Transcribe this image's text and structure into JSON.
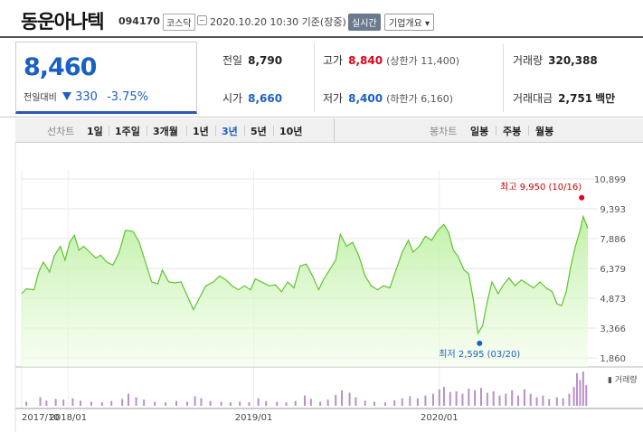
{
  "header": {
    "name": "동운아나텍",
    "code": "094170",
    "market": "코스닥",
    "timestamp": "2020.10.20 10:30 기준(장중)",
    "realtime_label": "실시간",
    "company_label": "기업개요 ▾"
  },
  "price": {
    "current": "8,460",
    "change_label": "전일대비",
    "change_amount": "330",
    "change_pct": "-3.75%",
    "color_down": "#1a5fc4",
    "color_up": "#e0001a"
  },
  "stats": {
    "prev_close": {
      "label": "전일",
      "value": "8,790"
    },
    "high": {
      "label": "고가",
      "value": "8,840",
      "sub": "(상한가 11,400)"
    },
    "volume": {
      "label": "거래량",
      "value": "320,388"
    },
    "open": {
      "label": "시가",
      "value": "8,660"
    },
    "low": {
      "label": "저가",
      "value": "8,400",
      "sub": "(하한가 6,160)"
    },
    "amount": {
      "label": "거래대금",
      "value": "2,751",
      "unit": "백만"
    }
  },
  "periods": {
    "line_label": "선차트",
    "items": [
      "1일",
      "1주일",
      "3개월",
      "1년",
      "3년",
      "5년",
      "10년"
    ],
    "active": "3년",
    "candle_label": "봉차트",
    "candle_items": [
      "일봉",
      "주봉",
      "월봉"
    ]
  },
  "chart_data": {
    "type": "area",
    "y_ticks": [
      "10,899",
      "9,393",
      "7,886",
      "6,379",
      "4,873",
      "3,366",
      "1,860"
    ],
    "ylim": [
      1860,
      10899
    ],
    "x_ticks": [
      {
        "label": "2017/10",
        "t": 0
      },
      {
        "label": "2018/01",
        "t": 3
      },
      {
        "label": "2019/01",
        "t": 15
      },
      {
        "label": "2020/01",
        "t": 27
      }
    ],
    "t_span": 36.6,
    "high_annotation": "최고 9,950 (10/16)",
    "low_annotation": "최저 2,595 (03/20)",
    "high_point": {
      "t": 36.2,
      "y": 9950
    },
    "low_point": {
      "t": 29.6,
      "y": 2595
    },
    "volume_legend": "▮ 거래량",
    "series": [
      {
        "t": 0.0,
        "y": 5100
      },
      {
        "t": 0.3,
        "y": 5350
      },
      {
        "t": 0.8,
        "y": 5300
      },
      {
        "t": 1.1,
        "y": 6200
      },
      {
        "t": 1.4,
        "y": 6700
      },
      {
        "t": 1.8,
        "y": 6200
      },
      {
        "t": 2.1,
        "y": 7000
      },
      {
        "t": 2.5,
        "y": 7500
      },
      {
        "t": 2.8,
        "y": 6800
      },
      {
        "t": 3.1,
        "y": 7700
      },
      {
        "t": 3.4,
        "y": 8050
      },
      {
        "t": 3.7,
        "y": 7300
      },
      {
        "t": 4.0,
        "y": 7500
      },
      {
        "t": 4.4,
        "y": 7200
      },
      {
        "t": 4.8,
        "y": 6900
      },
      {
        "t": 5.1,
        "y": 7050
      },
      {
        "t": 5.5,
        "y": 6700
      },
      {
        "t": 5.9,
        "y": 6550
      },
      {
        "t": 6.3,
        "y": 7200
      },
      {
        "t": 6.7,
        "y": 8300
      },
      {
        "t": 7.2,
        "y": 8250
      },
      {
        "t": 7.6,
        "y": 7700
      },
      {
        "t": 8.0,
        "y": 6700
      },
      {
        "t": 8.4,
        "y": 5700
      },
      {
        "t": 8.8,
        "y": 5600
      },
      {
        "t": 9.1,
        "y": 6300
      },
      {
        "t": 9.5,
        "y": 5700
      },
      {
        "t": 9.9,
        "y": 5650
      },
      {
        "t": 10.3,
        "y": 5700
      },
      {
        "t": 10.7,
        "y": 5000
      },
      {
        "t": 11.1,
        "y": 4300
      },
      {
        "t": 11.5,
        "y": 4900
      },
      {
        "t": 11.9,
        "y": 5500
      },
      {
        "t": 12.4,
        "y": 5700
      },
      {
        "t": 12.8,
        "y": 6000
      },
      {
        "t": 13.2,
        "y": 5800
      },
      {
        "t": 13.6,
        "y": 5500
      },
      {
        "t": 14.0,
        "y": 5300
      },
      {
        "t": 14.4,
        "y": 5500
      },
      {
        "t": 14.8,
        "y": 5300
      },
      {
        "t": 15.1,
        "y": 5850
      },
      {
        "t": 15.5,
        "y": 5700
      },
      {
        "t": 16.0,
        "y": 5500
      },
      {
        "t": 16.4,
        "y": 5550
      },
      {
        "t": 16.8,
        "y": 5200
      },
      {
        "t": 17.2,
        "y": 5700
      },
      {
        "t": 17.6,
        "y": 5400
      },
      {
        "t": 18.0,
        "y": 6500
      },
      {
        "t": 18.4,
        "y": 6600
      },
      {
        "t": 18.8,
        "y": 6000
      },
      {
        "t": 19.2,
        "y": 5300
      },
      {
        "t": 19.5,
        "y": 5800
      },
      {
        "t": 19.9,
        "y": 6300
      },
      {
        "t": 20.3,
        "y": 6800
      },
      {
        "t": 20.6,
        "y": 8100
      },
      {
        "t": 21.0,
        "y": 7500
      },
      {
        "t": 21.4,
        "y": 7700
      },
      {
        "t": 21.8,
        "y": 7000
      },
      {
        "t": 22.2,
        "y": 6000
      },
      {
        "t": 22.6,
        "y": 5500
      },
      {
        "t": 23.0,
        "y": 5300
      },
      {
        "t": 23.4,
        "y": 5500
      },
      {
        "t": 23.8,
        "y": 5400
      },
      {
        "t": 24.2,
        "y": 6300
      },
      {
        "t": 24.6,
        "y": 7200
      },
      {
        "t": 25.0,
        "y": 7800
      },
      {
        "t": 25.3,
        "y": 7200
      },
      {
        "t": 25.7,
        "y": 7500
      },
      {
        "t": 26.1,
        "y": 8000
      },
      {
        "t": 26.5,
        "y": 7800
      },
      {
        "t": 26.9,
        "y": 8300
      },
      {
        "t": 27.3,
        "y": 8600
      },
      {
        "t": 27.6,
        "y": 8200
      },
      {
        "t": 27.9,
        "y": 7300
      },
      {
        "t": 28.2,
        "y": 7000
      },
      {
        "t": 28.6,
        "y": 6300
      },
      {
        "t": 28.9,
        "y": 6100
      },
      {
        "t": 29.2,
        "y": 4800
      },
      {
        "t": 29.5,
        "y": 3100
      },
      {
        "t": 29.8,
        "y": 3500
      },
      {
        "t": 30.1,
        "y": 4700
      },
      {
        "t": 30.4,
        "y": 5700
      },
      {
        "t": 30.8,
        "y": 5100
      },
      {
        "t": 31.1,
        "y": 5500
      },
      {
        "t": 31.5,
        "y": 5900
      },
      {
        "t": 31.9,
        "y": 5500
      },
      {
        "t": 32.3,
        "y": 5800
      },
      {
        "t": 32.7,
        "y": 5600
      },
      {
        "t": 33.1,
        "y": 5400
      },
      {
        "t": 33.5,
        "y": 5700
      },
      {
        "t": 33.9,
        "y": 5400
      },
      {
        "t": 34.3,
        "y": 5200
      },
      {
        "t": 34.6,
        "y": 4600
      },
      {
        "t": 34.9,
        "y": 4500
      },
      {
        "t": 35.2,
        "y": 5200
      },
      {
        "t": 35.5,
        "y": 6500
      },
      {
        "t": 35.8,
        "y": 7500
      },
      {
        "t": 36.1,
        "y": 8300
      },
      {
        "t": 36.3,
        "y": 9000
      },
      {
        "t": 36.6,
        "y": 8400
      }
    ],
    "volume": [
      {
        "t": 0.3,
        "v": 0.12
      },
      {
        "t": 1.2,
        "v": 0.25
      },
      {
        "t": 1.6,
        "v": 0.15
      },
      {
        "t": 2.2,
        "v": 0.2
      },
      {
        "t": 2.7,
        "v": 0.18
      },
      {
        "t": 3.3,
        "v": 0.22
      },
      {
        "t": 3.8,
        "v": 0.15
      },
      {
        "t": 4.5,
        "v": 0.12
      },
      {
        "t": 5.2,
        "v": 0.1
      },
      {
        "t": 5.8,
        "v": 0.14
      },
      {
        "t": 6.5,
        "v": 0.2
      },
      {
        "t": 6.9,
        "v": 0.35
      },
      {
        "t": 7.4,
        "v": 0.25
      },
      {
        "t": 7.9,
        "v": 0.18
      },
      {
        "t": 8.6,
        "v": 0.12
      },
      {
        "t": 9.3,
        "v": 0.1
      },
      {
        "t": 10.0,
        "v": 0.14
      },
      {
        "t": 10.7,
        "v": 0.12
      },
      {
        "t": 11.2,
        "v": 0.28
      },
      {
        "t": 11.6,
        "v": 0.22
      },
      {
        "t": 12.2,
        "v": 0.14
      },
      {
        "t": 12.9,
        "v": 0.12
      },
      {
        "t": 13.5,
        "v": 0.1
      },
      {
        "t": 14.1,
        "v": 0.12
      },
      {
        "t": 14.7,
        "v": 0.1
      },
      {
        "t": 15.3,
        "v": 0.22
      },
      {
        "t": 15.8,
        "v": 0.14
      },
      {
        "t": 16.5,
        "v": 0.12
      },
      {
        "t": 17.1,
        "v": 0.1
      },
      {
        "t": 17.7,
        "v": 0.14
      },
      {
        "t": 18.3,
        "v": 0.3
      },
      {
        "t": 18.7,
        "v": 0.2
      },
      {
        "t": 19.3,
        "v": 0.12
      },
      {
        "t": 19.8,
        "v": 0.18
      },
      {
        "t": 20.3,
        "v": 0.32
      },
      {
        "t": 20.7,
        "v": 0.45
      },
      {
        "t": 21.2,
        "v": 0.38
      },
      {
        "t": 21.6,
        "v": 0.25
      },
      {
        "t": 22.2,
        "v": 0.15
      },
      {
        "t": 22.8,
        "v": 0.12
      },
      {
        "t": 23.5,
        "v": 0.1
      },
      {
        "t": 24.1,
        "v": 0.16
      },
      {
        "t": 24.6,
        "v": 0.22
      },
      {
        "t": 25.1,
        "v": 0.28
      },
      {
        "t": 25.6,
        "v": 0.22
      },
      {
        "t": 26.1,
        "v": 0.3
      },
      {
        "t": 26.6,
        "v": 0.35
      },
      {
        "t": 27.0,
        "v": 0.48
      },
      {
        "t": 27.3,
        "v": 0.55
      },
      {
        "t": 27.7,
        "v": 0.4
      },
      {
        "t": 28.1,
        "v": 0.42
      },
      {
        "t": 28.5,
        "v": 0.35
      },
      {
        "t": 28.9,
        "v": 0.5
      },
      {
        "t": 29.3,
        "v": 0.45
      },
      {
        "t": 29.7,
        "v": 0.52
      },
      {
        "t": 30.1,
        "v": 0.38
      },
      {
        "t": 30.5,
        "v": 0.42
      },
      {
        "t": 30.9,
        "v": 0.3
      },
      {
        "t": 31.3,
        "v": 0.35
      },
      {
        "t": 31.7,
        "v": 0.45
      },
      {
        "t": 32.1,
        "v": 0.3
      },
      {
        "t": 32.5,
        "v": 0.48
      },
      {
        "t": 32.9,
        "v": 0.35
      },
      {
        "t": 33.3,
        "v": 0.25
      },
      {
        "t": 33.7,
        "v": 0.3
      },
      {
        "t": 34.1,
        "v": 0.2
      },
      {
        "t": 34.6,
        "v": 0.25
      },
      {
        "t": 35.0,
        "v": 0.22
      },
      {
        "t": 35.4,
        "v": 0.35
      },
      {
        "t": 35.7,
        "v": 0.55
      },
      {
        "t": 35.9,
        "v": 0.95
      },
      {
        "t": 36.1,
        "v": 0.75
      },
      {
        "t": 36.3,
        "v": 1.0
      },
      {
        "t": 36.5,
        "v": 0.6
      }
    ]
  }
}
